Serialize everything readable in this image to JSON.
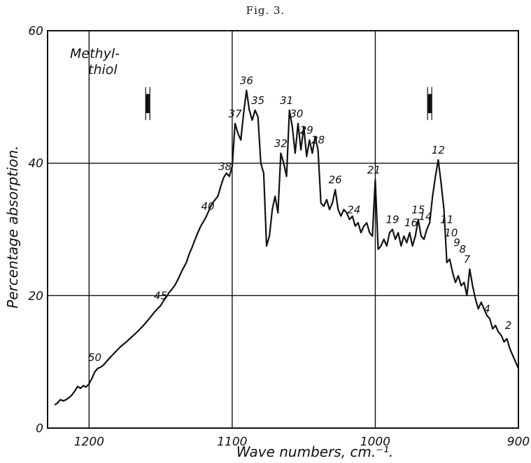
{
  "figure_label": "Fig. 3.",
  "chart_data": {
    "type": "line",
    "title": "",
    "sample_label_lines": [
      "Methyl-",
      "thiol"
    ],
    "xlabel": "Wave numbers, cm.⁻¹.",
    "ylabel": "Percentage absorption.",
    "xlim": [
      1229,
      900
    ],
    "ylim": [
      0,
      60
    ],
    "x_reversed": true,
    "x_ticks": [
      1200,
      1100,
      1000,
      900
    ],
    "x_tick_labels": [
      "1200",
      "1100",
      "1000",
      "900"
    ],
    "y_ticks": [
      0,
      20,
      40,
      60
    ],
    "y_tick_labels": [
      "0",
      "20",
      "40",
      "60"
    ],
    "grid": true,
    "series": [
      {
        "x": [
          1224,
          1222,
          1220,
          1218,
          1216,
          1214,
          1212,
          1210,
          1208,
          1206,
          1204,
          1202,
          1200,
          1198,
          1196,
          1194,
          1192,
          1190,
          1186,
          1182,
          1178,
          1174,
          1170,
          1166,
          1162,
          1158,
          1154,
          1150,
          1148,
          1146,
          1144,
          1142,
          1140,
          1138,
          1135,
          1132,
          1130,
          1128,
          1125,
          1122,
          1120,
          1118,
          1115,
          1113,
          1110,
          1108,
          1106,
          1104,
          1102,
          1100,
          1098,
          1096,
          1094,
          1092,
          1090,
          1088,
          1086,
          1084,
          1082,
          1080,
          1078,
          1076,
          1074,
          1072,
          1070,
          1068,
          1066,
          1064,
          1062,
          1060,
          1058,
          1056,
          1054,
          1052,
          1050,
          1048,
          1046,
          1044,
          1042,
          1040,
          1038,
          1036,
          1034,
          1032,
          1030,
          1028,
          1026,
          1024,
          1022,
          1020,
          1018,
          1016,
          1014,
          1012,
          1010,
          1008,
          1006,
          1004,
          1002,
          1000,
          998,
          996,
          994,
          992,
          990,
          988,
          986,
          984,
          982,
          980,
          978,
          976,
          974,
          972,
          970,
          968,
          966,
          964,
          962,
          960,
          958,
          956,
          954,
          952,
          950,
          948,
          946,
          944,
          942,
          940,
          938,
          936,
          934,
          932,
          930,
          928,
          926,
          924,
          922,
          920,
          918,
          916,
          914,
          912,
          910,
          908,
          906,
          904,
          902,
          900
        ],
        "values": [
          3.5,
          3.8,
          4.3,
          4.1,
          4.3,
          4.6,
          5.0,
          5.6,
          6.3,
          6.0,
          6.4,
          6.2,
          6.7,
          7.5,
          8.5,
          9.0,
          9.2,
          9.5,
          10.5,
          11.4,
          12.3,
          13.0,
          13.8,
          14.6,
          15.5,
          16.5,
          17.6,
          18.5,
          19.2,
          19.8,
          20.5,
          21.0,
          21.6,
          22.4,
          23.8,
          25.0,
          26.3,
          27.3,
          29.0,
          30.5,
          31.2,
          32.0,
          33.5,
          34.2,
          35.0,
          36.5,
          37.8,
          38.5,
          38.0,
          39.5,
          46.0,
          44.5,
          43.5,
          47.5,
          51.0,
          48.0,
          46.5,
          48.0,
          47.0,
          40.0,
          38.5,
          27.5,
          29.0,
          33.0,
          35.0,
          32.5,
          41.5,
          40.0,
          38.0,
          48.0,
          45.5,
          41.5,
          46.0,
          42.0,
          45.5,
          41.0,
          43.5,
          41.5,
          44.0,
          42.0,
          34.0,
          33.5,
          34.5,
          33.0,
          34.0,
          36.0,
          33.0,
          32.0,
          33.0,
          32.5,
          31.5,
          32.0,
          30.5,
          31.0,
          29.5,
          30.5,
          31.0,
          29.5,
          29.0,
          37.5,
          27.0,
          27.5,
          28.5,
          27.5,
          29.5,
          30.0,
          28.5,
          29.5,
          27.5,
          29.0,
          28.0,
          29.5,
          27.5,
          29.0,
          31.5,
          29.0,
          28.5,
          30.0,
          31.0,
          35.0,
          38.0,
          40.5,
          37.0,
          33.0,
          25.0,
          25.5,
          23.5,
          22.0,
          23.0,
          21.5,
          22.0,
          20.0,
          24.0,
          21.5,
          19.5,
          18.0,
          19.0,
          18.0,
          17.0,
          16.5,
          15.0,
          15.5,
          14.5,
          14.0,
          13.0,
          13.5,
          12.0,
          11.0,
          10.0,
          9.0
        ]
      }
    ],
    "annotations": [
      {
        "text": "50",
        "x": 1196,
        "y": 9.2
      },
      {
        "text": "45",
        "x": 1150,
        "y": 18.5
      },
      {
        "text": "40",
        "x": 1117,
        "y": 32.0
      },
      {
        "text": "38",
        "x": 1105,
        "y": 38.0
      },
      {
        "text": "37",
        "x": 1098,
        "y": 46.0
      },
      {
        "text": "36",
        "x": 1090,
        "y": 51.0
      },
      {
        "text": "35",
        "x": 1082,
        "y": 48.0
      },
      {
        "text": "32",
        "x": 1066,
        "y": 41.5
      },
      {
        "text": "31",
        "x": 1062,
        "y": 48.0
      },
      {
        "text": "30",
        "x": 1055,
        "y": 46.0
      },
      {
        "text": "29",
        "x": 1048,
        "y": 43.5
      },
      {
        "text": "28",
        "x": 1040,
        "y": 42.0
      },
      {
        "text": "26",
        "x": 1028,
        "y": 36.0
      },
      {
        "text": "24",
        "x": 1015,
        "y": 31.5
      },
      {
        "text": "21",
        "x": 1001,
        "y": 37.5
      },
      {
        "text": "19",
        "x": 988,
        "y": 30.0
      },
      {
        "text": "16",
        "x": 975,
        "y": 29.5
      },
      {
        "text": "15",
        "x": 970,
        "y": 31.5
      },
      {
        "text": "14",
        "x": 965,
        "y": 30.5
      },
      {
        "text": "12",
        "x": 956,
        "y": 40.5
      },
      {
        "text": "11",
        "x": 950,
        "y": 30.0
      },
      {
        "text": "10",
        "x": 947,
        "y": 28.0
      },
      {
        "text": "9",
        "x": 943,
        "y": 26.5
      },
      {
        "text": "8",
        "x": 939,
        "y": 25.5
      },
      {
        "text": "7",
        "x": 936,
        "y": 24.0
      },
      {
        "text": "4",
        "x": 922,
        "y": 16.5
      },
      {
        "text": "2",
        "x": 907,
        "y": 14.0
      }
    ],
    "resolution_marks": [
      {
        "x": 1159,
        "y_top": 51.5,
        "y_bottom": 46.5
      },
      {
        "x": 962,
        "y_top": 51.5,
        "y_bottom": 46.5
      }
    ]
  }
}
